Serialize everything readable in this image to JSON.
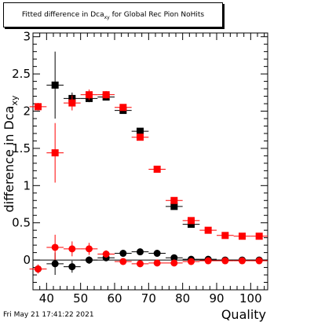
{
  "title": {
    "main": "Fitted difference in Dca",
    "sub": "xy",
    "rest": " for Global Rec Pion NoHits"
  },
  "footer": "Fri May 21 17:41:22 2021",
  "chart_data": {
    "type": "scatter",
    "xlabel": "Quality",
    "ylabel_main": "difference in Dca",
    "ylabel_sub": "xy",
    "xlim": [
      36,
      105
    ],
    "ylim": [
      -0.4,
      3.05
    ],
    "xticks": [
      40,
      50,
      60,
      70,
      80,
      90,
      100
    ],
    "yticks": [
      0,
      0.5,
      1,
      1.5,
      2,
      2.5,
      3
    ],
    "ytick_labels": [
      "0",
      "0.5",
      "1",
      "1.5",
      "2",
      "2.5",
      "3"
    ],
    "grid": false,
    "series": [
      {
        "marker": "square",
        "color": "#000000",
        "points": [
          {
            "x": 42.5,
            "y": 2.35,
            "ey": 0.45
          },
          {
            "x": 47.5,
            "y": 2.17,
            "ey": 0.08
          },
          {
            "x": 52.5,
            "y": 2.17,
            "ey": 0.05
          },
          {
            "x": 57.5,
            "y": 2.19,
            "ey": 0.04
          },
          {
            "x": 62.5,
            "y": 2.01,
            "ey": 0.03
          },
          {
            "x": 67.5,
            "y": 1.73,
            "ey": 0.03
          },
          {
            "x": 77.5,
            "y": 0.72,
            "ey": 0.03
          },
          {
            "x": 82.5,
            "y": 0.48,
            "ey": 0.03
          }
        ]
      },
      {
        "marker": "circle",
        "color": "#000000",
        "points": [
          {
            "x": 37.5,
            "y": -0.12,
            "ey": 0.05
          },
          {
            "x": 42.5,
            "y": -0.05,
            "ey": 0.15
          },
          {
            "x": 47.5,
            "y": -0.09,
            "ey": 0.08
          },
          {
            "x": 52.5,
            "y": 0.0,
            "ey": 0.05
          },
          {
            "x": 57.5,
            "y": 0.03,
            "ey": 0.04
          },
          {
            "x": 62.5,
            "y": 0.09,
            "ey": 0.03
          },
          {
            "x": 67.5,
            "y": 0.11,
            "ey": 0.03
          },
          {
            "x": 72.5,
            "y": 0.09,
            "ey": 0.02
          },
          {
            "x": 77.5,
            "y": 0.03,
            "ey": 0.02
          },
          {
            "x": 82.5,
            "y": 0.01,
            "ey": 0.02
          },
          {
            "x": 87.5,
            "y": 0.01,
            "ey": 0.02
          },
          {
            "x": 92.5,
            "y": 0.0,
            "ey": 0.02
          },
          {
            "x": 97.5,
            "y": 0.0,
            "ey": 0.02
          },
          {
            "x": 102.5,
            "y": 0.0,
            "ey": 0.02
          }
        ]
      },
      {
        "marker": "square",
        "color": "#ff0000",
        "points": [
          {
            "x": 37.5,
            "y": 2.06,
            "ey": 0.05
          },
          {
            "x": 42.5,
            "y": 1.44,
            "ey": 0.4
          },
          {
            "x": 47.5,
            "y": 2.11,
            "ey": 0.1
          },
          {
            "x": 52.5,
            "y": 2.22,
            "ey": 0.07
          },
          {
            "x": 57.5,
            "y": 2.22,
            "ey": 0.05
          },
          {
            "x": 62.5,
            "y": 2.05,
            "ey": 0.04
          },
          {
            "x": 67.5,
            "y": 1.65,
            "ey": 0.03
          },
          {
            "x": 72.5,
            "y": 1.22,
            "ey": 0.03
          },
          {
            "x": 77.5,
            "y": 0.8,
            "ey": 0.03
          },
          {
            "x": 82.5,
            "y": 0.53,
            "ey": 0.03
          },
          {
            "x": 87.5,
            "y": 0.4,
            "ey": 0.02
          },
          {
            "x": 92.5,
            "y": 0.33,
            "ey": 0.02
          },
          {
            "x": 97.5,
            "y": 0.32,
            "ey": 0.02
          },
          {
            "x": 102.5,
            "y": 0.32,
            "ey": 0.02
          }
        ]
      },
      {
        "marker": "circle",
        "color": "#ff0000",
        "points": [
          {
            "x": 37.5,
            "y": -0.12,
            "ey": 0.06
          },
          {
            "x": 42.5,
            "y": 0.17,
            "ey": 0.17
          },
          {
            "x": 47.5,
            "y": 0.15,
            "ey": 0.1
          },
          {
            "x": 52.5,
            "y": 0.15,
            "ey": 0.08
          },
          {
            "x": 57.5,
            "y": 0.08,
            "ey": 0.05
          },
          {
            "x": 62.5,
            "y": -0.02,
            "ey": 0.04
          },
          {
            "x": 67.5,
            "y": -0.05,
            "ey": 0.03
          },
          {
            "x": 72.5,
            "y": -0.04,
            "ey": 0.03
          },
          {
            "x": 77.5,
            "y": -0.04,
            "ey": 0.03
          },
          {
            "x": 82.5,
            "y": -0.02,
            "ey": 0.02
          },
          {
            "x": 87.5,
            "y": -0.01,
            "ey": 0.02
          },
          {
            "x": 92.5,
            "y": -0.01,
            "ey": 0.02
          },
          {
            "x": 97.5,
            "y": -0.01,
            "ey": 0.02
          },
          {
            "x": 102.5,
            "y": -0.01,
            "ey": 0.02
          }
        ]
      }
    ]
  }
}
